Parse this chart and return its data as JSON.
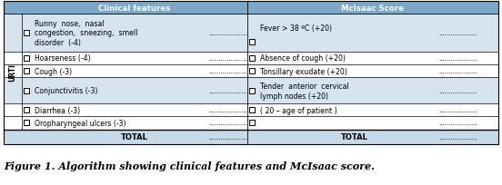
{
  "header_bg": "#7ba7c9",
  "row_bg_light": "#d6e4f0",
  "row_bg_white": "#ffffff",
  "total_row_bg": "#c5d9e8",
  "urti_label": "URTI",
  "col1_header": "Clinical features",
  "col2_header": "McIsaac Score",
  "left_rows": [
    "Runny  nose,  nasal\ncongestion,  sneezing,  smell\ndisorder  (-4)",
    "Hoarseness (-4)",
    "Cough (-3)",
    "Conjunctivitis (-3)",
    "Diarrhea (-3)",
    "Oropharyngeal ulcers (-3)",
    "TOTAL"
  ],
  "right_rows": [
    "Fever > 38 ºC (+20)",
    "Absence of cough (+20)",
    "Tonsillary exudate (+20)",
    "Tender  anterior  cervical\nlymph nodes (+20)",
    "( 20 – age of patient )",
    "",
    "TOTAL"
  ],
  "right_checkbox_row": [
    true,
    true,
    true,
    true,
    true,
    true,
    false
  ],
  "left_checkbox_row": [
    true,
    true,
    true,
    true,
    true,
    true,
    false
  ],
  "show_right_text": [
    true,
    true,
    true,
    true,
    true,
    false,
    true
  ],
  "row_bg": [
    "light",
    "white",
    "white",
    "light",
    "white",
    "white",
    "total"
  ],
  "row_multiline": [
    true,
    false,
    false,
    true,
    false,
    false,
    false
  ],
  "right_multiline": [
    false,
    false,
    false,
    true,
    false,
    false,
    false
  ],
  "figure_caption": "Figure 1. Algorithm showing clinical features and McIsaac score.",
  "figsize": [
    5.52,
    2.05
  ],
  "dpi": 100
}
